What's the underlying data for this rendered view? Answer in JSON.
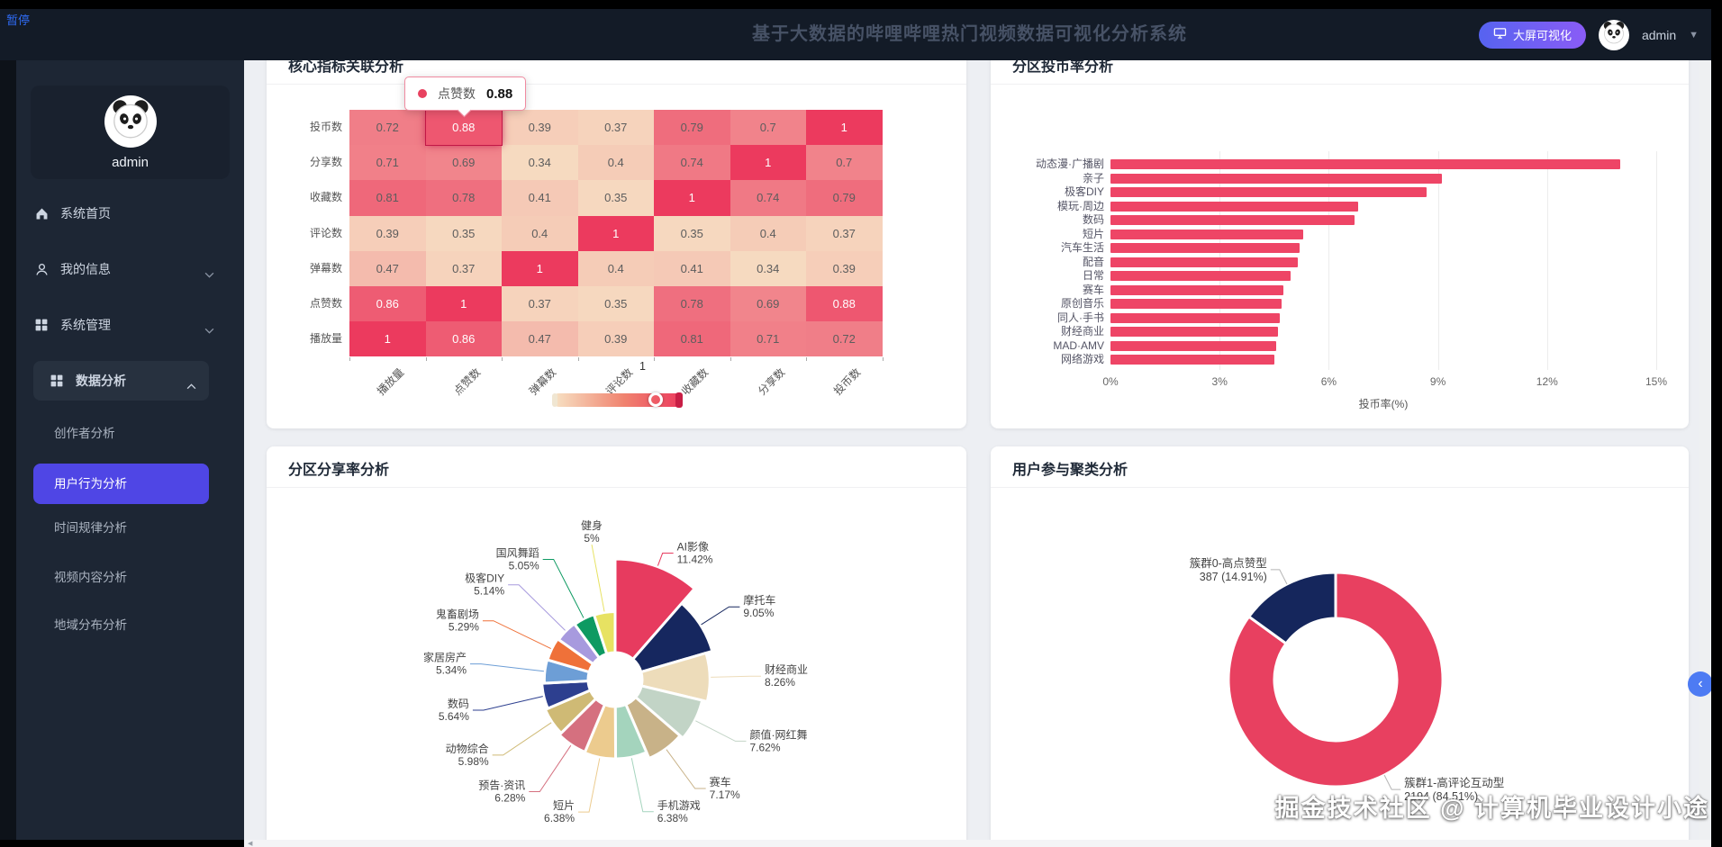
{
  "overlay": {
    "pause": "暂停",
    "watermark": "掘金技术社区 @ 计算机毕业设计小途"
  },
  "header": {
    "title": "基于大数据的哔哩哔哩热门视频数据可视化分析系统",
    "big_screen_button": "大屏可视化",
    "username": "admin"
  },
  "sidebar": {
    "profile_name": "admin",
    "items": [
      {
        "label": "系统首页",
        "icon": "home-icon",
        "chevron": null
      },
      {
        "label": "我的信息",
        "icon": "user-icon",
        "chevron": "down"
      },
      {
        "label": "系统管理",
        "icon": "grid-icon",
        "chevron": "down"
      },
      {
        "label": "数据分析",
        "icon": "grid-icon",
        "chevron": "up",
        "expanded": true
      }
    ],
    "submenu": [
      {
        "label": "创作者分析",
        "active": false
      },
      {
        "label": "用户行为分析",
        "active": true
      },
      {
        "label": "时间规律分析",
        "active": false
      },
      {
        "label": "视频内容分析",
        "active": false
      },
      {
        "label": "地域分布分析",
        "active": false
      }
    ]
  },
  "cards": [
    {
      "title": "核心指标关联分析"
    },
    {
      "title": "分区投币率分析"
    },
    {
      "title": "分区分享率分析"
    },
    {
      "title": "用户参与聚类分析"
    }
  ],
  "chart_data": [
    {
      "type": "heatmap",
      "title": "核心指标关联分析",
      "x_categories": [
        "播放量",
        "点赞数",
        "弹幕数",
        "评论数",
        "收藏数",
        "分享数",
        "投币数"
      ],
      "y_categories": [
        "投币数",
        "分享数",
        "收藏数",
        "评论数",
        "弹幕数",
        "点赞数",
        "播放量"
      ],
      "matrix": [
        [
          0.72,
          0.88,
          0.39,
          0.37,
          0.79,
          0.7,
          1
        ],
        [
          0.71,
          0.69,
          0.34,
          0.4,
          0.74,
          1,
          0.7
        ],
        [
          0.81,
          0.78,
          0.41,
          0.35,
          1,
          0.74,
          0.79
        ],
        [
          0.39,
          0.35,
          0.4,
          1,
          0.35,
          0.4,
          0.37
        ],
        [
          0.47,
          0.37,
          1,
          0.4,
          0.41,
          0.34,
          0.39
        ],
        [
          0.86,
          1,
          0.37,
          0.35,
          0.78,
          0.69,
          0.88
        ],
        [
          1,
          0.86,
          0.47,
          0.39,
          0.81,
          0.71,
          0.72
        ]
      ],
      "tooltip": {
        "series": "点赞数",
        "value": "0.88"
      },
      "highlight_cell": {
        "row": 0,
        "col": 1
      },
      "visual_map": {
        "min": 0,
        "max": 1,
        "max_label": "1",
        "low_color": "#f7e4c6",
        "high_color": "#ec3a5e"
      }
    },
    {
      "type": "bar",
      "title": "分区投币率分析",
      "categories": [
        "动态漫·广播剧",
        "亲子",
        "极客DIY",
        "模玩·周边",
        "数码",
        "短片",
        "汽车生活",
        "配音",
        "日常",
        "赛车",
        "原创音乐",
        "同人·手书",
        "财经商业",
        "MAD·AMV",
        "网络游戏"
      ],
      "values": [
        14.0,
        9.1,
        8.7,
        6.8,
        6.7,
        5.3,
        5.2,
        5.15,
        4.95,
        4.75,
        4.7,
        4.65,
        4.6,
        4.55,
        4.5
      ],
      "x_ticks": [
        "0%",
        "3%",
        "6%",
        "9%",
        "12%",
        "15%"
      ],
      "xlim": [
        0,
        15
      ],
      "xlabel": "投币率(%)",
      "bar_color": "#ee4566"
    },
    {
      "type": "pie",
      "variant": "rose",
      "title": "分区分享率分析",
      "slices": [
        {
          "name": "AI影像",
          "value": 11.42,
          "pct_label": "11.42%",
          "color": "#e73b5f"
        },
        {
          "name": "摩托车",
          "value": 9.05,
          "pct_label": "9.05%",
          "color": "#16275f"
        },
        {
          "name": "财经商业",
          "value": 8.26,
          "pct_label": "8.26%",
          "color": "#eddcba"
        },
        {
          "name": "颜值·网红舞",
          "value": 7.62,
          "pct_label": "7.62%",
          "color": "#c2d4c6"
        },
        {
          "name": "赛车",
          "value": 7.17,
          "pct_label": "7.17%",
          "color": "#c8b288"
        },
        {
          "name": "手机游戏",
          "value": 6.38,
          "pct_label": "6.38%",
          "color": "#a4d4bd"
        },
        {
          "name": "短片",
          "value": 6.38,
          "pct_label": "6.38%",
          "color": "#eccb8e"
        },
        {
          "name": "预告·资讯",
          "value": 6.28,
          "pct_label": "6.28%",
          "color": "#d5707f"
        },
        {
          "name": "动物综合",
          "value": 5.98,
          "pct_label": "5.98%",
          "color": "#cfba75"
        },
        {
          "name": "数码",
          "value": 5.64,
          "pct_label": "5.64%",
          "color": "#2d3f8f"
        },
        {
          "name": "家居房产",
          "value": 5.34,
          "pct_label": "5.34%",
          "color": "#6d9ed6"
        },
        {
          "name": "鬼畜剧场",
          "value": 5.29,
          "pct_label": "5.29%",
          "color": "#ef7139"
        },
        {
          "name": "极客DIY",
          "value": 5.14,
          "pct_label": "5.14%",
          "color": "#a79ade"
        },
        {
          "name": "国风舞蹈",
          "value": 5.05,
          "pct_label": "5.05%",
          "color": "#0e9a62"
        },
        {
          "name": "健身",
          "value": 5.0,
          "pct_label": "5%",
          "color": "#e7e262"
        }
      ]
    },
    {
      "type": "pie",
      "variant": "donut",
      "title": "用户参与聚类分析",
      "slices": [
        {
          "name": "簇群1-高评论互动型",
          "value": 2194,
          "pct": 84.51,
          "label_line2": "2194 (84.51%)",
          "color": "#e84060"
        },
        {
          "name": "簇群0-高点赞型",
          "value": 387,
          "pct": 14.91,
          "label_line2": "387 (14.91%)",
          "color": "#15265c"
        }
      ]
    }
  ]
}
